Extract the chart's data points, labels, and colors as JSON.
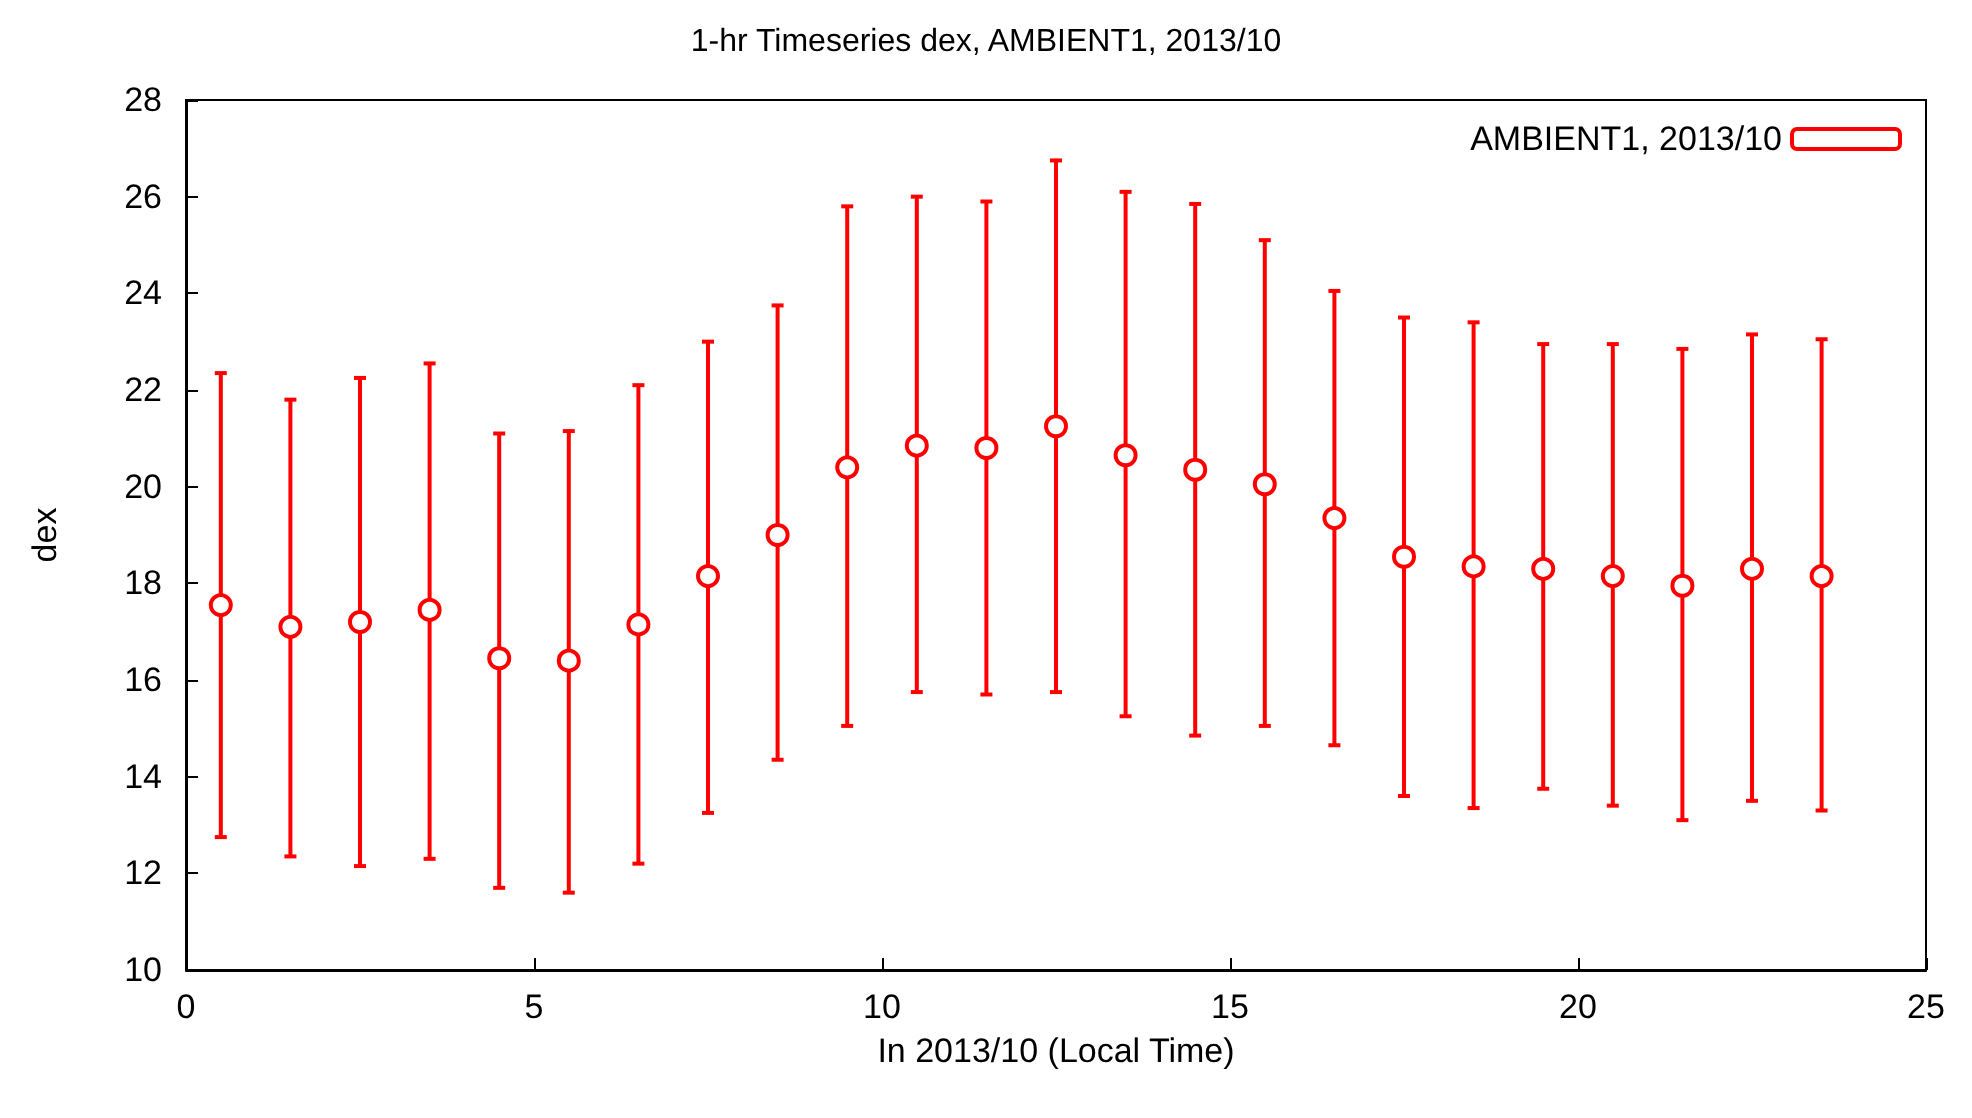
{
  "chart_data": {
    "type": "scatter",
    "title": "1-hr Timeseries dex, AMBIENT1, 2013/10",
    "xlabel": "In 2013/10 (Local Time)",
    "ylabel": "dex",
    "x": [
      0.5,
      1.5,
      2.5,
      3.5,
      4.5,
      5.5,
      6.5,
      7.5,
      8.5,
      9.5,
      10.5,
      11.5,
      12.5,
      13.5,
      14.5,
      15.5,
      16.5,
      17.5,
      18.5,
      19.5,
      20.5,
      21.5,
      22.5,
      23.5
    ],
    "series": [
      {
        "name": "AMBIENT1, 2013/10",
        "color": "#ff0000",
        "values": [
          17.55,
          17.1,
          17.2,
          17.45,
          16.45,
          16.4,
          17.15,
          18.15,
          19.0,
          20.4,
          20.85,
          20.8,
          21.25,
          20.65,
          20.35,
          20.05,
          19.35,
          18.55,
          18.35,
          18.3,
          18.15,
          17.95,
          18.3,
          18.15
        ],
        "errors": [
          [
            12.75,
            22.35
          ],
          [
            12.35,
            21.8
          ],
          [
            12.15,
            22.25
          ],
          [
            12.3,
            22.55
          ],
          [
            11.7,
            21.1
          ],
          [
            11.6,
            21.15
          ],
          [
            12.2,
            22.1
          ],
          [
            13.25,
            23.0
          ],
          [
            14.35,
            23.75
          ],
          [
            15.05,
            25.8
          ],
          [
            15.75,
            26.0
          ],
          [
            15.7,
            25.9
          ],
          [
            15.75,
            26.75
          ],
          [
            15.25,
            26.1
          ],
          [
            14.85,
            25.85
          ],
          [
            15.05,
            25.1
          ],
          [
            14.65,
            24.05
          ],
          [
            13.6,
            23.5
          ],
          [
            13.35,
            23.4
          ],
          [
            13.75,
            22.95
          ],
          [
            13.4,
            22.95
          ],
          [
            13.1,
            22.85
          ],
          [
            13.5,
            23.15
          ],
          [
            13.3,
            23.05
          ]
        ]
      }
    ],
    "xlim": [
      0,
      25
    ],
    "xticks": [
      0,
      5,
      10,
      15,
      20,
      25
    ],
    "ylim": [
      10,
      28
    ],
    "yticks": [
      10,
      12,
      14,
      16,
      18,
      20,
      22,
      24,
      26,
      28
    ],
    "grid": false,
    "legend": "top right",
    "marker": "circle"
  }
}
